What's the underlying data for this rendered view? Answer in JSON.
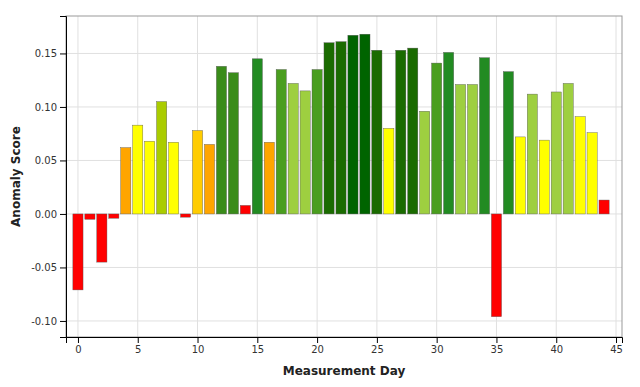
{
  "chart_data": {
    "type": "bar",
    "x": [
      0,
      1,
      2,
      3,
      4,
      5,
      6,
      7,
      8,
      9,
      10,
      11,
      12,
      13,
      14,
      15,
      16,
      17,
      18,
      19,
      20,
      21,
      22,
      23,
      24,
      25,
      26,
      27,
      28,
      29,
      30,
      31,
      32,
      33,
      34,
      35,
      36,
      37,
      38,
      39,
      40,
      41,
      42,
      43,
      44
    ],
    "values": [
      -0.071,
      -0.005,
      -0.045,
      -0.004,
      0.062,
      0.083,
      0.068,
      0.105,
      0.067,
      -0.003,
      0.078,
      0.065,
      0.138,
      0.132,
      0.008,
      0.145,
      0.067,
      0.135,
      0.122,
      0.115,
      0.135,
      0.16,
      0.161,
      0.167,
      0.168,
      0.153,
      0.08,
      0.153,
      0.155,
      0.096,
      0.141,
      0.151,
      0.121,
      0.121,
      0.146,
      -0.096,
      0.133,
      0.072,
      0.112,
      0.069,
      0.114,
      0.122,
      0.091,
      0.076,
      0.013
    ],
    "colors": [
      "#ff0000",
      "#ff0000",
      "#ff0000",
      "#ff0000",
      "#ffa500",
      "#ffff00",
      "#ffff00",
      "#aacc00",
      "#ffff00",
      "#ff0000",
      "#ffcc00",
      "#ffa500",
      "#3a8c1a",
      "#3a8c1a",
      "#ff0000",
      "#228b22",
      "#ffa500",
      "#4a9e1f",
      "#9ecf40",
      "#9ecf40",
      "#4a9e1f",
      "#1a6b00",
      "#1a6b00",
      "#006400",
      "#006400",
      "#1a6b00",
      "#ffff00",
      "#1a6b00",
      "#1a6b00",
      "#9ecf40",
      "#4a9e1f",
      "#228b22",
      "#9ecf40",
      "#9ecf40",
      "#228b22",
      "#ff0000",
      "#228b22",
      "#ffff00",
      "#9ecf40",
      "#ffff00",
      "#9ecf40",
      "#9ecf40",
      "#ffff00",
      "#ffff00",
      "#ff0000"
    ],
    "xlabel": "Measurement Day",
    "ylabel": "Anomaly Score",
    "xlim": [
      -1.0,
      45.5
    ],
    "ylim": [
      -0.115,
      0.185
    ],
    "xticks": [
      0,
      5,
      10,
      15,
      20,
      25,
      30,
      35,
      40,
      45
    ],
    "yticks": [
      {
        "value": -0.1,
        "label": "-0.10"
      },
      -0.05,
      {
        "value": 0.0,
        "label": "0.00"
      },
      0.05,
      {
        "value": 0.1,
        "label": "0.10"
      },
      0.15
    ],
    "grid": true
  }
}
